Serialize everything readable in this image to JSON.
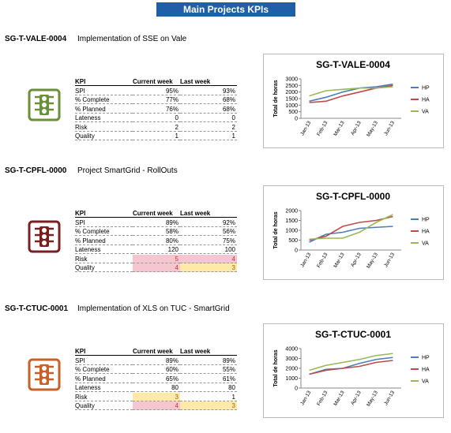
{
  "header": {
    "title": "Main Projects KPIs"
  },
  "table_header": [
    "KPI",
    "Current week",
    "Last week"
  ],
  "projects": [
    {
      "code": "SG-T-VALE-0004",
      "name": "Implementation of SSE on Vale",
      "status_color": "#6b8e3a",
      "rows": [
        [
          "SPI",
          "95%",
          "93%"
        ],
        [
          "% Complete",
          "77%",
          "68%"
        ],
        [
          "% Planned",
          "76%",
          "68%"
        ],
        [
          "Lateness",
          "0",
          "0"
        ],
        [
          "Risk",
          "2",
          "2"
        ],
        [
          "Quality",
          "1",
          "1"
        ]
      ],
      "cell_colors": [
        [
          null,
          null,
          null
        ],
        [
          null,
          null,
          null
        ],
        [
          null,
          null,
          null
        ],
        [
          null,
          null,
          null
        ],
        [
          null,
          null,
          null
        ],
        [
          null,
          null,
          null
        ]
      ],
      "chart": {
        "type": "line",
        "title": "SG-T-VALE-0004",
        "y_label": "Total de horas",
        "categories": [
          "Jan-13",
          "Feb-13",
          "Mar-13",
          "Apr-13",
          "May-13",
          "Jun-13"
        ],
        "series": [
          {
            "name": "HP",
            "color": "#4a7ebb",
            "values": [
              1300,
              1600,
              2000,
              2300,
              2400,
              2600
            ]
          },
          {
            "name": "HA",
            "color": "#be4b48",
            "values": [
              1200,
              1300,
              1700,
              2000,
              2300,
              2500
            ]
          },
          {
            "name": "VA",
            "color": "#98b954",
            "values": [
              1700,
              2100,
              2200,
              2300,
              2300,
              2400
            ]
          }
        ],
        "ylim": [
          0,
          3000
        ],
        "yticks": [
          0,
          500,
          1000,
          1500,
          2000,
          2500,
          3000
        ]
      }
    },
    {
      "code": "SG-T-CPFL-0000",
      "name": "Project SmartGrid - RollOuts",
      "status_color": "#7a2020",
      "rows": [
        [
          "SPI",
          "89%",
          "92%"
        ],
        [
          "% Complete",
          "58%",
          "56%"
        ],
        [
          "% Planned",
          "80%",
          "75%"
        ],
        [
          "Lateness",
          "120",
          "100"
        ],
        [
          "Risk",
          "5",
          "4"
        ],
        [
          "Quality",
          "4",
          "3"
        ]
      ],
      "cell_colors": [
        [
          null,
          null,
          null
        ],
        [
          null,
          null,
          null
        ],
        [
          null,
          null,
          null
        ],
        [
          null,
          null,
          null
        ],
        [
          null,
          "#f6c6d0",
          "#f6c6d0"
        ],
        [
          null,
          "#f6c6d0",
          "#fde9a8"
        ]
      ],
      "chart": {
        "type": "line",
        "title": "SG-T-CPFL-0000",
        "y_label": "Total de horas",
        "categories": [
          "Jan-13",
          "Feb-13",
          "Mar-13",
          "Apr-13",
          "May-13",
          "Jun-13"
        ],
        "series": [
          {
            "name": "HP",
            "color": "#4a7ebb",
            "values": [
              400,
              800,
              900,
              1100,
              1150,
              1200
            ]
          },
          {
            "name": "HA",
            "color": "#be4b48",
            "values": [
              500,
              700,
              1200,
              1400,
              1500,
              1700
            ]
          },
          {
            "name": "VA",
            "color": "#98b954",
            "values": [
              550,
              600,
              600,
              900,
              1400,
              1800
            ]
          }
        ],
        "ylim": [
          0,
          2000
        ],
        "yticks": [
          0,
          500,
          1000,
          1500,
          2000
        ]
      }
    },
    {
      "code": "SG-T-CTUC-0001",
      "name": "Implementation of XLS on TUC - SmartGrid",
      "status_color": "#c8602a",
      "rows": [
        [
          "SPI",
          "89%",
          "89%"
        ],
        [
          "% Complete",
          "60%",
          "55%"
        ],
        [
          "% Planned",
          "65%",
          "61%"
        ],
        [
          "Lateness",
          "80",
          "80"
        ],
        [
          "Risk",
          "3",
          "1"
        ],
        [
          "Quality",
          "4",
          "3"
        ]
      ],
      "cell_colors": [
        [
          null,
          null,
          null
        ],
        [
          null,
          null,
          null
        ],
        [
          null,
          null,
          null
        ],
        [
          null,
          null,
          null
        ],
        [
          null,
          "#fde9a8",
          null
        ],
        [
          null,
          "#f6c6d0",
          "#fde9a8"
        ]
      ],
      "chart": {
        "type": "line",
        "title": "SG-T-CTUC-0001",
        "y_label": "Total de horas",
        "categories": [
          "Jan-13",
          "Feb-13",
          "Mar-13",
          "Apr-13",
          "May-13",
          "Jun-13"
        ],
        "series": [
          {
            "name": "HP",
            "color": "#4a7ebb",
            "values": [
              1400,
              1900,
              2000,
              2500,
              2900,
              3100
            ]
          },
          {
            "name": "HA",
            "color": "#be4b48",
            "values": [
              1400,
              1800,
              2000,
              2200,
              2600,
              2800
            ]
          },
          {
            "name": "VA",
            "color": "#98b954",
            "values": [
              1800,
              2300,
              2600,
              2900,
              3300,
              3500
            ]
          }
        ],
        "ylim": [
          0,
          4000
        ],
        "yticks": [
          0,
          1000,
          2000,
          3000,
          4000
        ]
      }
    }
  ]
}
